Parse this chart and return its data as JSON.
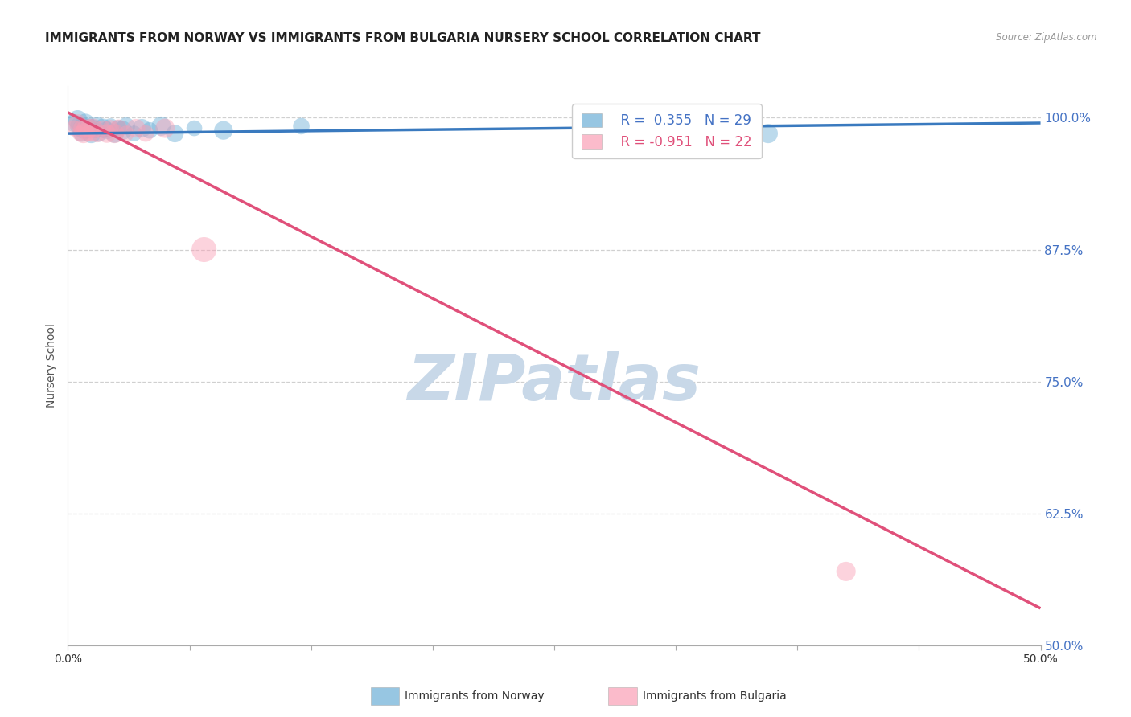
{
  "title": "IMMIGRANTS FROM NORWAY VS IMMIGRANTS FROM BULGARIA NURSERY SCHOOL CORRELATION CHART",
  "source": "Source: ZipAtlas.com",
  "ylabel": "Nursery School",
  "xlim": [
    0.0,
    0.5
  ],
  "ylim": [
    0.5,
    1.03
  ],
  "xticks": [
    0.0,
    0.0625,
    0.125,
    0.1875,
    0.25,
    0.3125,
    0.375,
    0.4375,
    0.5
  ],
  "xtick_labels": [
    "0.0%",
    "",
    "",
    "",
    "",
    "",
    "",
    "",
    "50.0%"
  ],
  "ytick_labels_right": [
    "100.0%",
    "87.5%",
    "75.0%",
    "62.5%",
    "50.0%"
  ],
  "yticks_right": [
    1.0,
    0.875,
    0.75,
    0.625,
    0.5
  ],
  "norway_color": "#6baed6",
  "bulgaria_color": "#fa9fb5",
  "norway_R": 0.355,
  "norway_N": 29,
  "bulgaria_R": -0.951,
  "bulgaria_N": 22,
  "norway_scatter_x": [
    0.003,
    0.005,
    0.006,
    0.007,
    0.008,
    0.009,
    0.01,
    0.011,
    0.012,
    0.013,
    0.014,
    0.015,
    0.016,
    0.018,
    0.02,
    0.022,
    0.024,
    0.026,
    0.028,
    0.03,
    0.034,
    0.038,
    0.042,
    0.048,
    0.055,
    0.065,
    0.08,
    0.12,
    0.36
  ],
  "norway_scatter_y": [
    0.995,
    0.998,
    0.992,
    0.985,
    0.99,
    0.995,
    0.988,
    0.992,
    0.985,
    0.99,
    0.988,
    0.992,
    0.985,
    0.99,
    0.988,
    0.992,
    0.985,
    0.99,
    0.988,
    0.992,
    0.985,
    0.99,
    0.988,
    0.992,
    0.985,
    0.99,
    0.988,
    0.992,
    0.985
  ],
  "norway_scatter_sizes": [
    250,
    300,
    280,
    220,
    350,
    280,
    220,
    190,
    300,
    250,
    200,
    280,
    220,
    300,
    250,
    200,
    280,
    220,
    300,
    250,
    200,
    280,
    220,
    300,
    250,
    200,
    280,
    220,
    300
  ],
  "bulgaria_scatter_x": [
    0.003,
    0.005,
    0.006,
    0.007,
    0.008,
    0.009,
    0.01,
    0.011,
    0.012,
    0.013,
    0.015,
    0.018,
    0.02,
    0.022,
    0.024,
    0.026,
    0.03,
    0.035,
    0.04,
    0.05,
    0.07,
    0.4
  ],
  "bulgaria_scatter_y": [
    0.99,
    0.995,
    0.985,
    0.99,
    0.985,
    0.99,
    0.985,
    0.99,
    0.985,
    0.99,
    0.985,
    0.99,
    0.985,
    0.99,
    0.985,
    0.99,
    0.985,
    0.99,
    0.985,
    0.99,
    0.875,
    0.57
  ],
  "bulgaria_scatter_sizes": [
    200,
    250,
    180,
    220,
    300,
    250,
    200,
    280,
    220,
    300,
    250,
    200,
    280,
    220,
    300,
    250,
    200,
    280,
    220,
    300,
    500,
    300
  ],
  "norway_trend_x": [
    0.0,
    0.5
  ],
  "norway_trend_y": [
    0.985,
    0.995
  ],
  "bulgaria_trend_x": [
    0.0,
    0.5
  ],
  "bulgaria_trend_y": [
    1.005,
    0.535
  ],
  "watermark": "ZIPatlas",
  "watermark_color": "#c8d8e8",
  "grid_color": "#d0d0d0",
  "background_color": "#ffffff",
  "title_fontsize": 11,
  "axis_label_fontsize": 10,
  "tick_fontsize": 10,
  "legend_fontsize": 12
}
